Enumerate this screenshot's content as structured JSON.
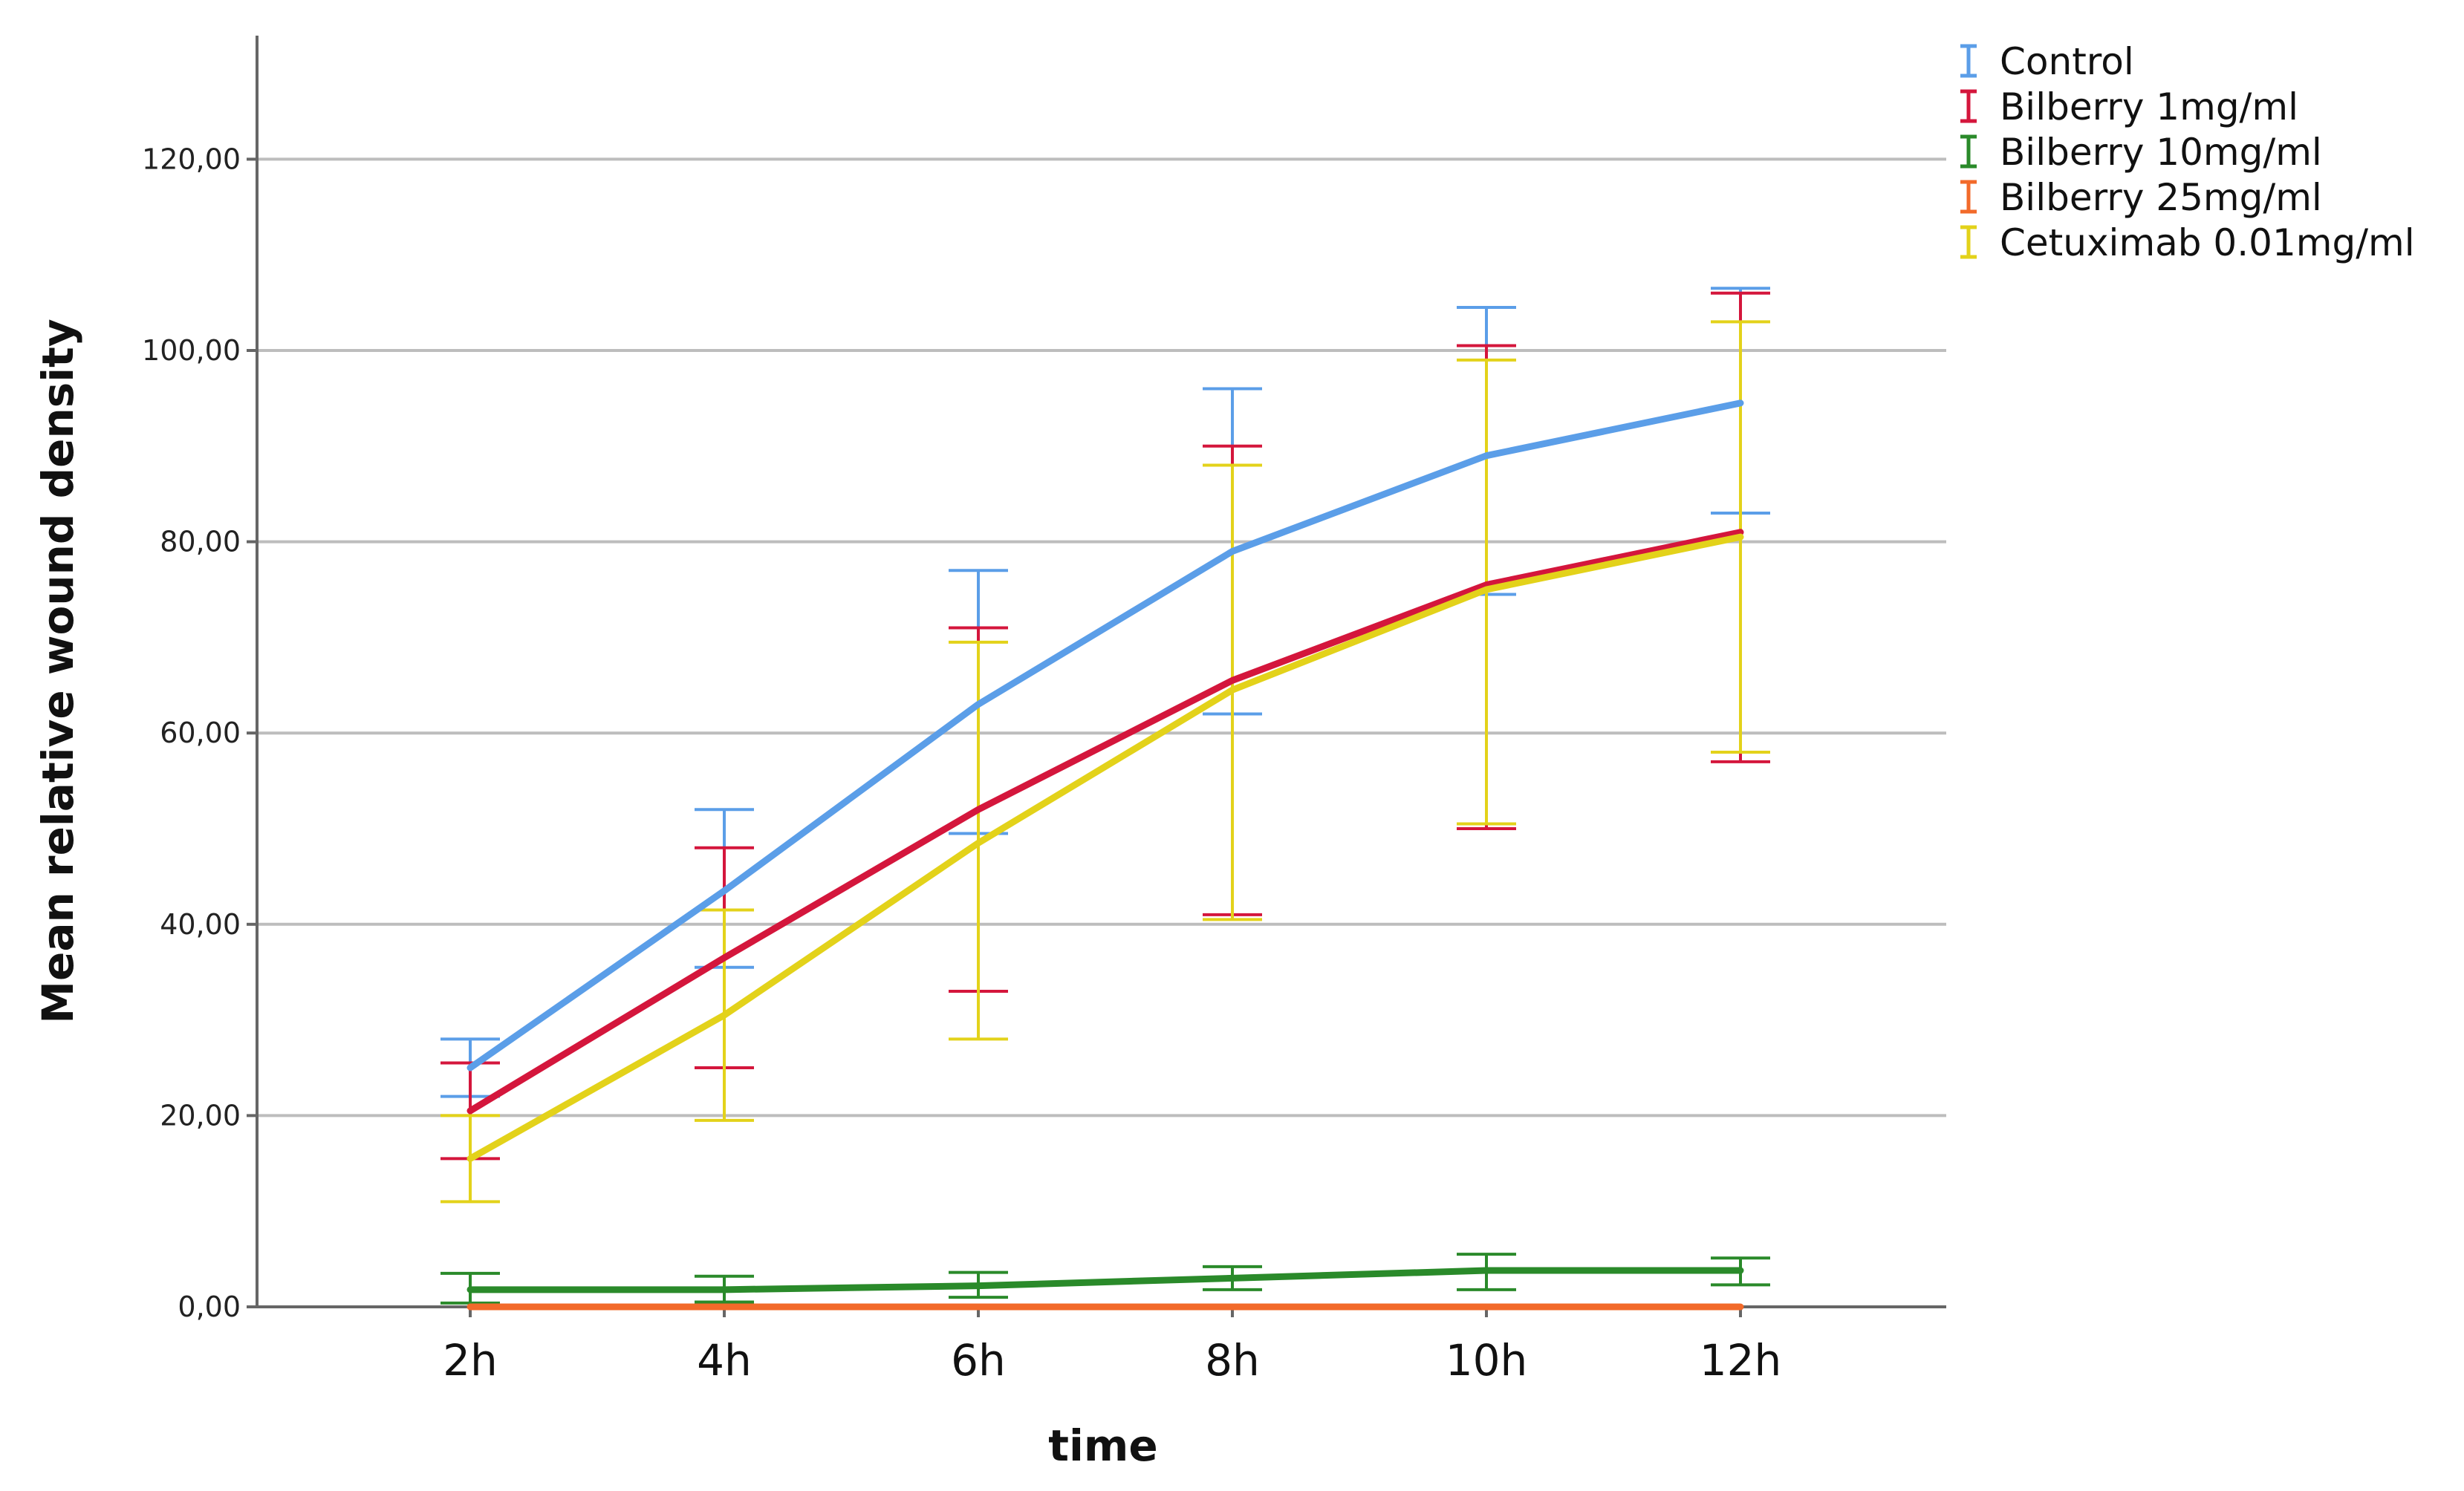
{
  "chart_data": {
    "type": "line",
    "title": "",
    "xlabel": "time",
    "ylabel": "Mean relative wound density",
    "categories": [
      "2h",
      "4h",
      "6h",
      "8h",
      "10h",
      "12h"
    ],
    "ylim": [
      0,
      133
    ],
    "yticks": [
      0,
      20,
      40,
      60,
      80,
      100,
      120
    ],
    "ytick_labels": [
      "0,00",
      "20,00",
      "40,00",
      "60,00",
      "80,00",
      "100,00",
      "120,00"
    ],
    "grid": true,
    "legend_position": "top-right",
    "series": [
      {
        "name": "Control",
        "color": "#5b9ee8",
        "values": [
          25,
          43.5,
          63,
          79,
          89,
          94.5
        ],
        "err_low": [
          22,
          35.5,
          49.5,
          62,
          74.5,
          83
        ],
        "err_high": [
          28,
          52,
          77,
          96,
          104.5,
          106.5
        ]
      },
      {
        "name": "Bilberry 1mg/ml",
        "color": "#d4163c",
        "values": [
          20.5,
          36.5,
          52,
          65.5,
          75.5,
          81
        ],
        "err_low": [
          15.5,
          25,
          33,
          41,
          50,
          57
        ],
        "err_high": [
          25.5,
          48,
          71,
          90,
          100.5,
          106
        ]
      },
      {
        "name": "Bilberry 10mg/ml",
        "color": "#2a8a2a",
        "values": [
          1.8,
          1.8,
          2.2,
          3,
          3.8,
          3.8
        ],
        "err_low": [
          0.4,
          0.5,
          1,
          1.8,
          1.8,
          2.3
        ],
        "err_high": [
          3.5,
          3.2,
          3.6,
          4.2,
          5.5,
          5.1
        ]
      },
      {
        "name": "Bilberry 25mg/ml",
        "color": "#f26a2a",
        "values": [
          0,
          0,
          0,
          0,
          0,
          0
        ],
        "err_low": [
          0,
          0,
          0,
          0,
          0,
          0
        ],
        "err_high": [
          0,
          0,
          0,
          0,
          0,
          0
        ]
      },
      {
        "name": "Cetuximab 0.01mg/ml",
        "color": "#e3d21a",
        "values": [
          15.5,
          30.5,
          48.5,
          64.5,
          75,
          80.5
        ],
        "err_low": [
          11,
          19.5,
          28,
          40.5,
          50.5,
          58
        ],
        "err_high": [
          20,
          41.5,
          69.5,
          88,
          99,
          103
        ]
      }
    ]
  }
}
